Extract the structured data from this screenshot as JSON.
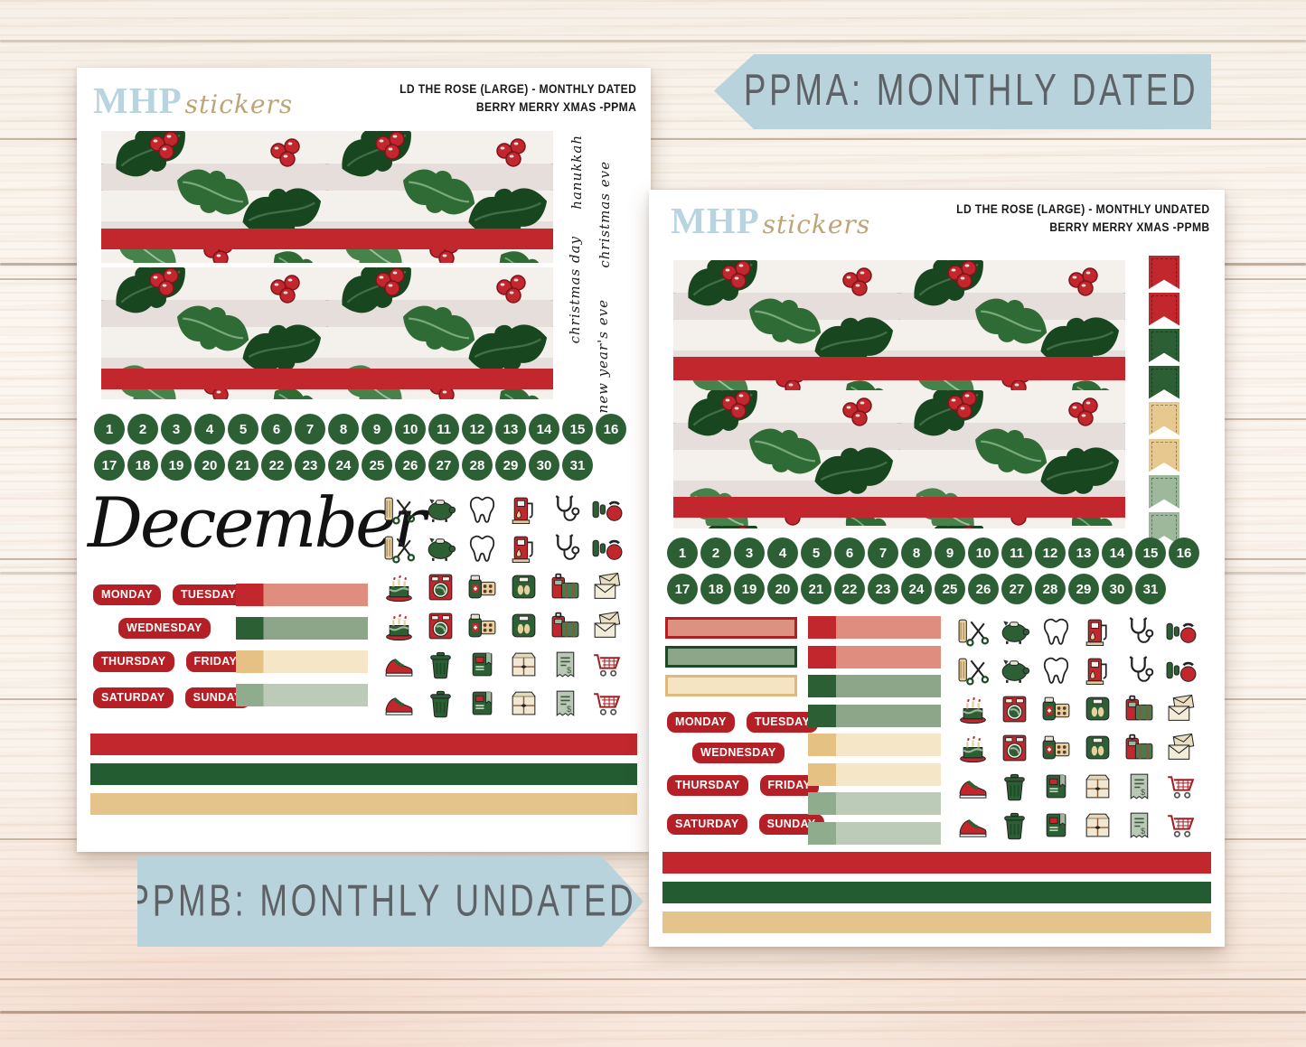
{
  "palette": {
    "red": "#c1272d",
    "dark_green": "#2d5f34",
    "deep_green": "#1d4a26",
    "salmon": "#de8d7e",
    "sage": "#8da68a",
    "light_sage": "#bccbb8",
    "tan": "#e5c48b",
    "cream": "#f4e6c6",
    "banner_blue": "#b9d3dc",
    "banner_text": "#5c6266",
    "logo_blue": "#b7d4e0",
    "logo_tan": "#bfa477",
    "label_red": "#b42025"
  },
  "banners": {
    "top": "PPMA: MONTHLY DATED",
    "bottom": "PPMB: MONTHLY UNDATED"
  },
  "brand": {
    "serif": "MHP",
    "script": "stickers"
  },
  "sheet_a": {
    "title_line1": "LD THE ROSE (LARGE) - MONTHLY DATED",
    "title_line2": "BERRY MERRY XMAS -PPMA",
    "holiday_scripts": [
      "hanukkah",
      "christmas eve",
      "christmas day",
      "new year's eve"
    ],
    "month_name": "December",
    "dates_row1": [
      "1",
      "2",
      "3",
      "4",
      "5",
      "6",
      "7",
      "8",
      "9",
      "10",
      "11",
      "12",
      "13",
      "14",
      "15",
      "16"
    ],
    "dates_row2": [
      "17",
      "18",
      "19",
      "20",
      "21",
      "22",
      "23",
      "24",
      "25",
      "26",
      "27",
      "28",
      "29",
      "30",
      "31"
    ],
    "weekday_row1": [
      "MONDAY",
      "TUESDAY"
    ],
    "weekday_row2": [
      "WEDNESDAY"
    ],
    "weekday_row3": [
      "THURSDAY",
      "FRIDAY"
    ],
    "weekday_row4": [
      "SATURDAY",
      "SUNDAY"
    ],
    "week_bars": [
      {
        "l": "#c1272d",
        "r": "#de8d7e"
      },
      {
        "l": "#2d5f34",
        "r": "#8da689"
      },
      {
        "l": "#e5c183",
        "r": "#f4e6c6"
      },
      {
        "l": "#8fac8d",
        "r": "#bccbb8"
      }
    ],
    "icon_grid": [
      [
        "haircut",
        "piggy-bank",
        "tooth",
        "gas-pump",
        "stethoscope",
        "weights"
      ],
      [
        "haircut",
        "piggy-bank",
        "tooth",
        "gas-pump",
        "stethoscope",
        "weights"
      ],
      [
        "birthday-cake",
        "laundry",
        "medicine",
        "scale",
        "luggage",
        "mail"
      ],
      [
        "birthday-cake",
        "laundry",
        "medicine",
        "scale",
        "luggage",
        "mail"
      ],
      [
        "sneaker",
        "trash-can",
        "book",
        "package",
        "receipt",
        "shopping-cart"
      ],
      [
        "sneaker",
        "trash-can",
        "book",
        "package",
        "receipt",
        "shopping-cart"
      ]
    ],
    "bottom_bars": [
      "#c1272d",
      "#235c31",
      "#e5c48b"
    ]
  },
  "sheet_b": {
    "title_line1": "LD THE ROSE (LARGE) - MONTHLY UNDATED",
    "title_line2": "BERRY MERRY XMAS -PPMB",
    "flags": [
      "#c1272d",
      "#c1272d",
      "#2d5f34",
      "#2d5f34",
      "#e7c98f",
      "#e7c98f",
      "#9db89a",
      "#9db89a"
    ],
    "dates_row1": [
      "1",
      "2",
      "3",
      "4",
      "5",
      "6",
      "7",
      "8",
      "9",
      "10",
      "11",
      "12",
      "13",
      "14",
      "15",
      "16"
    ],
    "dates_row2": [
      "17",
      "18",
      "19",
      "20",
      "21",
      "22",
      "23",
      "24",
      "25",
      "26",
      "27",
      "28",
      "29",
      "30",
      "31"
    ],
    "header_bars": [
      {
        "f": "#dd9181",
        "b": "#b01f24"
      },
      {
        "f": "#8da689",
        "b": "#1d4a26"
      },
      {
        "f": "#f4e4c2",
        "b": "#ddb97e"
      }
    ],
    "weekday_row1": [
      "MONDAY",
      "TUESDAY"
    ],
    "weekday_row2": [
      "WEDNESDAY"
    ],
    "weekday_row3": [
      "THURSDAY",
      "FRIDAY"
    ],
    "weekday_row4": [
      "SATURDAY",
      "SUNDAY"
    ],
    "week_bars": [
      {
        "l": "#c1272d",
        "r": "#de8d7e"
      },
      {
        "l": "#c1272d",
        "r": "#de8d7e"
      },
      {
        "l": "#2d5f34",
        "r": "#8da689"
      },
      {
        "l": "#2d5f34",
        "r": "#8da689"
      },
      {
        "l": "#e5c183",
        "r": "#f4e6c6"
      },
      {
        "l": "#e5c183",
        "r": "#f4e6c6"
      },
      {
        "l": "#8fac8d",
        "r": "#bccbb8"
      },
      {
        "l": "#8fac8d",
        "r": "#bccbb8"
      }
    ],
    "icon_grid": [
      [
        "haircut",
        "piggy-bank",
        "tooth",
        "gas-pump",
        "stethoscope",
        "weights"
      ],
      [
        "haircut",
        "piggy-bank",
        "tooth",
        "gas-pump",
        "stethoscope",
        "weights"
      ],
      [
        "birthday-cake",
        "laundry",
        "medicine",
        "scale",
        "luggage",
        "mail"
      ],
      [
        "birthday-cake",
        "laundry",
        "medicine",
        "scale",
        "luggage",
        "mail"
      ],
      [
        "sneaker",
        "trash-can",
        "book",
        "package",
        "receipt",
        "shopping-cart"
      ],
      [
        "sneaker",
        "trash-can",
        "book",
        "package",
        "receipt",
        "shopping-cart"
      ]
    ],
    "bottom_bars": [
      "#c1272d",
      "#235c31",
      "#e5c48b"
    ]
  }
}
